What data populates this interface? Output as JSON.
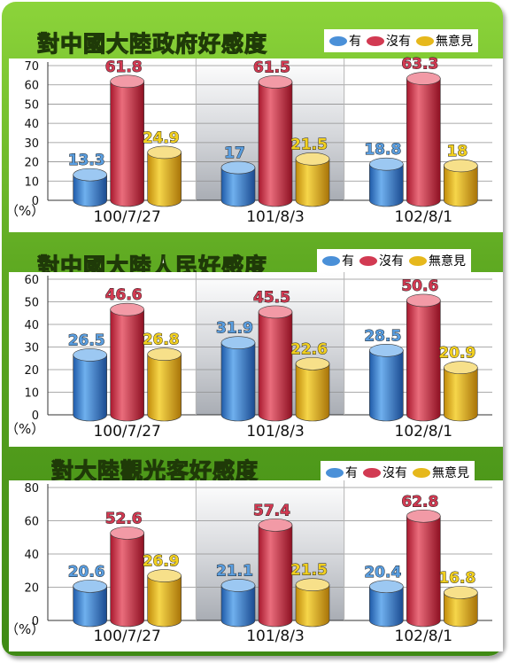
{
  "colors": {
    "blue": "#4a90d8",
    "red": "#d23a52",
    "yellow": "#e6b81c",
    "green_bg": "#5faa22"
  },
  "legend": [
    "有",
    "沒有",
    "無意見"
  ],
  "chart_data": [
    {
      "type": "bar",
      "title": "對中國大陸政府好感度",
      "categories": [
        "100/7/27",
        "101/8/3",
        "102/8/1"
      ],
      "series": [
        {
          "name": "有",
          "values": [
            13.3,
            17,
            18.8
          ]
        },
        {
          "name": "沒有",
          "values": [
            61.8,
            61.5,
            63.3
          ]
        },
        {
          "name": "無意見",
          "values": [
            24.9,
            21.5,
            18
          ]
        }
      ],
      "ylim": [
        0,
        70
      ],
      "yticks": [
        0,
        10,
        20,
        30,
        40,
        50,
        60,
        70
      ],
      "ylabel": "（%）",
      "grid": true,
      "legend_position": "top-right"
    },
    {
      "type": "bar",
      "title": "對中國大陸人民好感度",
      "categories": [
        "100/7/27",
        "101/8/3",
        "102/8/1"
      ],
      "series": [
        {
          "name": "有",
          "values": [
            26.5,
            31.9,
            28.5
          ]
        },
        {
          "name": "沒有",
          "values": [
            46.6,
            45.5,
            50.6
          ]
        },
        {
          "name": "無意見",
          "values": [
            26.8,
            22.6,
            20.9
          ]
        }
      ],
      "ylim": [
        0,
        60
      ],
      "yticks": [
        0,
        10,
        20,
        30,
        40,
        50,
        60
      ],
      "ylabel": "（%）",
      "grid": true,
      "legend_position": "top-right"
    },
    {
      "type": "bar",
      "title": "對大陸觀光客好感度",
      "categories": [
        "100/7/27",
        "101/8/3",
        "102/8/1"
      ],
      "series": [
        {
          "name": "有",
          "values": [
            20.6,
            21.1,
            20.4
          ]
        },
        {
          "name": "沒有",
          "values": [
            52.6,
            57.4,
            62.8
          ]
        },
        {
          "name": "無意見",
          "values": [
            26.9,
            21.5,
            16.8
          ]
        }
      ],
      "ylim": [
        0,
        80
      ],
      "yticks": [
        0,
        20,
        40,
        60,
        80
      ],
      "ylabel": "（%）",
      "grid": true,
      "legend_position": "top-right"
    }
  ]
}
